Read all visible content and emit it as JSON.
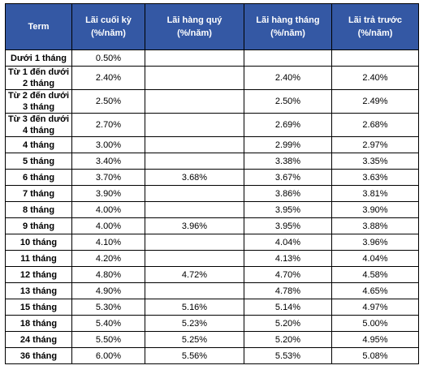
{
  "table": {
    "header": [
      "Term",
      "Lãi cuối kỳ (%/năm)",
      "Lãi hàng quý (%/năm)",
      "Lãi hàng tháng (%/năm)",
      "Lãi trả trước (%/năm)"
    ],
    "rows": [
      [
        "Dưới 1 tháng",
        "0.50%",
        null,
        null,
        null
      ],
      [
        "Từ 1 đến dưới 2 tháng",
        "2.40%",
        null,
        "2.40%",
        "2.40%"
      ],
      [
        "Từ 2 đến dưới 3 tháng",
        "2.50%",
        null,
        "2.50%",
        "2.49%"
      ],
      [
        "Từ 3 đến dưới 4 tháng",
        "2.70%",
        null,
        "2.69%",
        "2.68%"
      ],
      [
        "4 tháng",
        "3.00%",
        null,
        "2.99%",
        "2.97%"
      ],
      [
        "5 tháng",
        "3.40%",
        null,
        "3.38%",
        "3.35%"
      ],
      [
        "6 tháng",
        "3.70%",
        "3.68%",
        "3.67%",
        "3.63%"
      ],
      [
        "7 tháng",
        "3.90%",
        null,
        "3.86%",
        "3.81%"
      ],
      [
        "8 tháng",
        "4.00%",
        null,
        "3.95%",
        "3.90%"
      ],
      [
        "9 tháng",
        "4.00%",
        "3.96%",
        "3.95%",
        "3.88%"
      ],
      [
        "10 tháng",
        "4.10%",
        null,
        "4.04%",
        "3.96%"
      ],
      [
        "11 tháng",
        "4.20%",
        null,
        "4.13%",
        "4.04%"
      ],
      [
        "12 tháng",
        "4.80%",
        "4.72%",
        "4.70%",
        "4.58%"
      ],
      [
        "13 tháng",
        "4.90%",
        null,
        "4.78%",
        "4.65%"
      ],
      [
        "15 tháng",
        "5.30%",
        "5.16%",
        "5.14%",
        "4.97%"
      ],
      [
        "18 tháng",
        "5.40%",
        "5.23%",
        "5.20%",
        "5.00%"
      ],
      [
        "24 tháng",
        "5.50%",
        "5.25%",
        "5.20%",
        "4.95%"
      ],
      [
        "36 tháng",
        "6.00%",
        "5.56%",
        "5.53%",
        "5.08%"
      ]
    ]
  }
}
